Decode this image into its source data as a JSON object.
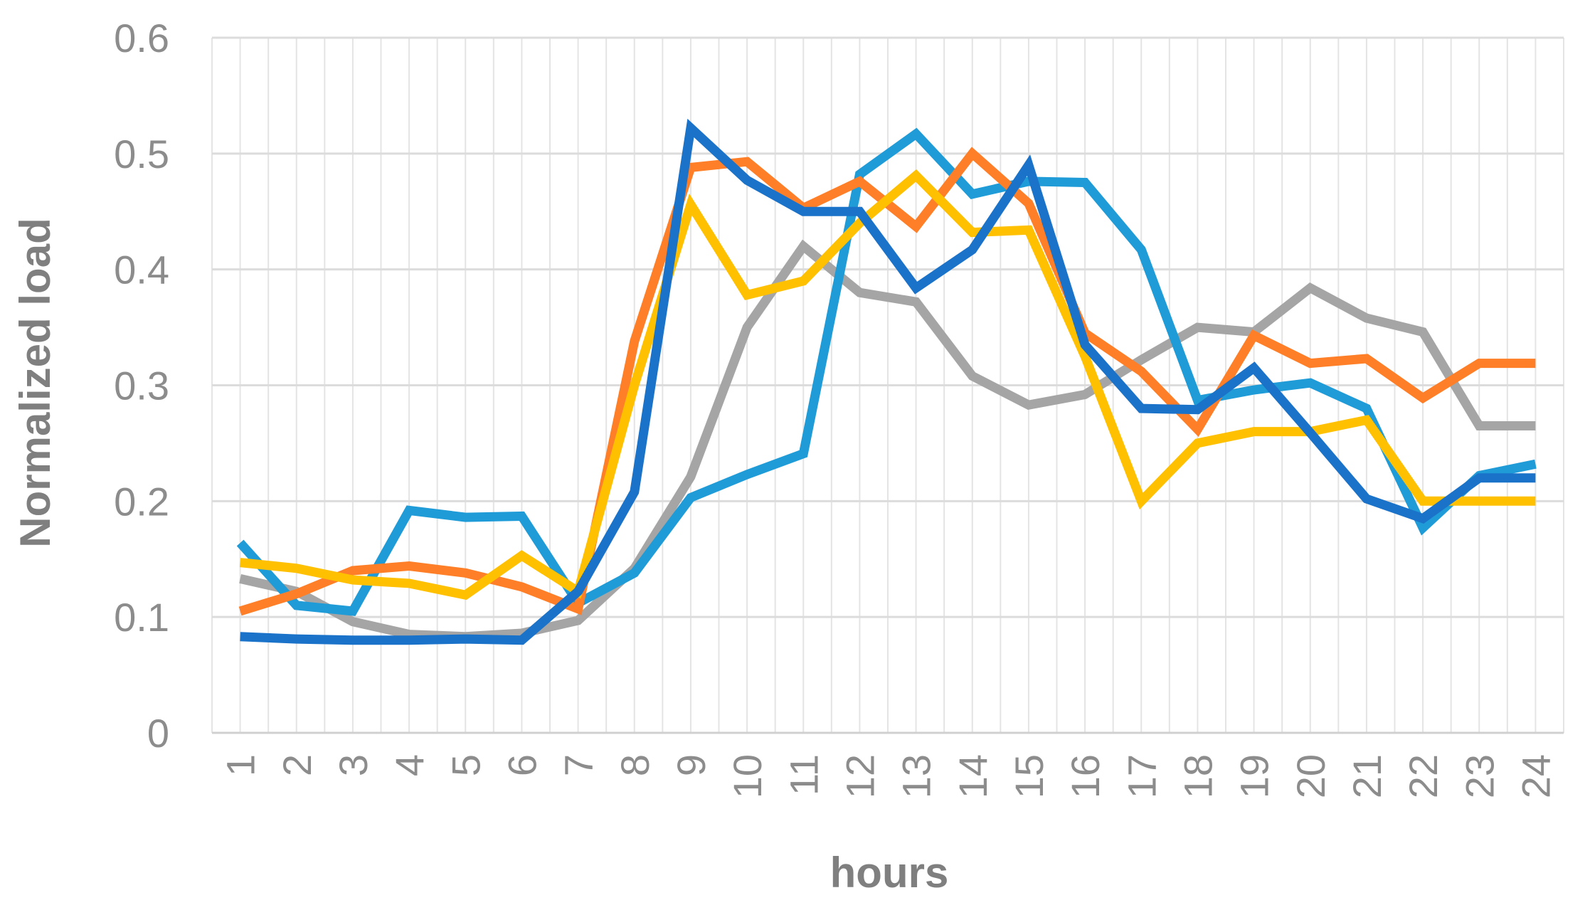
{
  "chart_data": {
    "type": "line",
    "title": "",
    "xlabel": "hours",
    "ylabel": "Normalized load",
    "ylim": [
      0,
      0.6
    ],
    "yticks": [
      "0",
      "0.1",
      "0.2",
      "0.3",
      "0.4",
      "0.5",
      "0.6"
    ],
    "x": [
      "1",
      "2",
      "3",
      "4",
      "5",
      "6",
      "7",
      "8",
      "9",
      "10",
      "11",
      "12",
      "13",
      "14",
      "15",
      "16",
      "17",
      "18",
      "19",
      "20",
      "21",
      "22",
      "23",
      "24"
    ],
    "grid": true,
    "legend": "none",
    "series": [
      {
        "color": "#a5a5a5",
        "values": [
          0.133,
          0.122,
          0.096,
          0.085,
          0.083,
          0.086,
          0.097,
          0.142,
          0.221,
          0.35,
          0.42,
          0.38,
          0.372,
          0.308,
          0.283,
          0.292,
          0.322,
          0.35,
          0.346,
          0.384,
          0.358,
          0.346,
          0.265,
          0.265
        ]
      },
      {
        "color": "#1f9bd7",
        "values": [
          0.164,
          0.11,
          0.105,
          0.192,
          0.186,
          0.187,
          0.112,
          0.138,
          0.203,
          0.223,
          0.241,
          0.482,
          0.517,
          0.465,
          0.476,
          0.475,
          0.417,
          0.287,
          0.296,
          0.302,
          0.28,
          0.177,
          0.222,
          0.232
        ]
      },
      {
        "color": "#fe7f27",
        "values": [
          0.105,
          0.12,
          0.14,
          0.144,
          0.138,
          0.126,
          0.107,
          0.338,
          0.488,
          0.493,
          0.453,
          0.476,
          0.437,
          0.5,
          0.457,
          0.345,
          0.312,
          0.262,
          0.343,
          0.319,
          0.323,
          0.289,
          0.319,
          0.319
        ]
      },
      {
        "color": "#ffc000",
        "values": [
          0.147,
          0.142,
          0.132,
          0.129,
          0.119,
          0.153,
          0.122,
          0.3,
          0.456,
          0.378,
          0.39,
          0.44,
          0.481,
          0.432,
          0.434,
          0.325,
          0.2,
          0.25,
          0.26,
          0.26,
          0.27,
          0.2,
          0.2,
          0.2
        ]
      },
      {
        "color": "#1b72c9",
        "values": [
          0.083,
          0.081,
          0.08,
          0.08,
          0.081,
          0.08,
          0.122,
          0.208,
          0.522,
          0.477,
          0.45,
          0.45,
          0.384,
          0.417,
          0.49,
          0.335,
          0.28,
          0.279,
          0.315,
          0.259,
          0.202,
          0.185,
          0.22,
          0.22
        ]
      }
    ]
  }
}
